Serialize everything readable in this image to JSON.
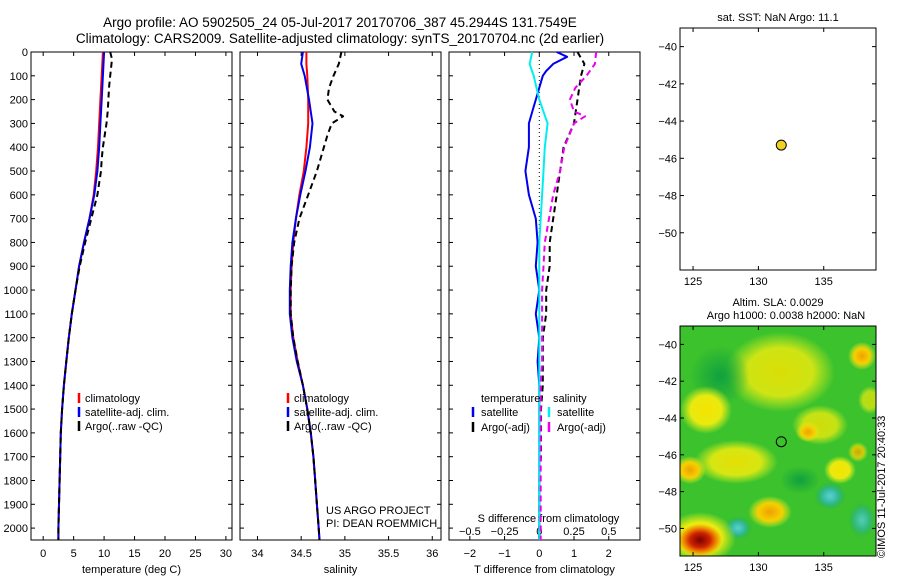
{
  "header": {
    "line1": "Argo profile: AO 5902505_24 05-Jul-2017 20170706_387 45.2944S 131.7549E",
    "line2": "Climatology: CARS2009. Satellite-adjusted climatology: synTS_20170704.nc (2d earlier)"
  },
  "colors": {
    "climatology": "#ff0000",
    "satellite": "#0000ee",
    "argo": "#000000",
    "sal_satellite": "#00eeee",
    "sal_argo": "#ee00ee",
    "marker": "#f0d020"
  },
  "chart_data": [
    {
      "type": "line",
      "xlabel": "temperature (deg C)",
      "ylabel": "",
      "xlim": [
        -2,
        31
      ],
      "ylim": [
        2050,
        0
      ],
      "xticks": [
        0,
        5,
        10,
        15,
        20,
        25,
        30
      ],
      "yticks": [
        0,
        100,
        200,
        300,
        400,
        500,
        600,
        700,
        800,
        900,
        1000,
        1100,
        1200,
        1300,
        1400,
        1500,
        1600,
        1700,
        1800,
        1900,
        2000
      ],
      "legend": {
        "position": "lower-center",
        "entries": [
          "climatology",
          "satellite-adj. clim.",
          "Argo(..raw -QC)"
        ]
      },
      "series": [
        {
          "name": "climatology",
          "color": "red",
          "style": "solid",
          "depth": [
            0,
            50,
            100,
            200,
            300,
            400,
            500,
            600,
            700,
            800,
            900,
            1000,
            1100,
            1200,
            1300,
            1400,
            1500,
            1600,
            1700,
            1800,
            1900,
            2000,
            2050
          ],
          "values": [
            9.8,
            9.7,
            9.6,
            9.4,
            9.2,
            9.0,
            8.7,
            8.3,
            7.6,
            6.7,
            5.9,
            5.3,
            4.7,
            4.2,
            3.8,
            3.4,
            3.1,
            2.9,
            2.8,
            2.7,
            2.6,
            2.5,
            2.5
          ]
        },
        {
          "name": "satellite-adj. clim.",
          "color": "blue",
          "style": "solid",
          "depth": [
            0,
            50,
            100,
            200,
            300,
            400,
            500,
            600,
            700,
            800,
            900,
            1000,
            1100,
            1200,
            1300,
            1400,
            1500,
            1600,
            1700,
            1800,
            1900,
            2000,
            2050
          ],
          "values": [
            10.0,
            9.9,
            9.8,
            9.6,
            9.4,
            9.2,
            8.9,
            8.4,
            7.6,
            6.7,
            5.9,
            5.3,
            4.7,
            4.2,
            3.8,
            3.4,
            3.1,
            2.9,
            2.8,
            2.7,
            2.6,
            2.5,
            2.5
          ]
        },
        {
          "name": "Argo(..raw -QC)",
          "color": "black",
          "style": "dashed",
          "depth": [
            0,
            30,
            100,
            150,
            200,
            250,
            300,
            350,
            400,
            450,
            500,
            550,
            600,
            700,
            800,
            900,
            1000,
            1100,
            1200,
            1300,
            1400,
            1500,
            1600,
            1700,
            1800,
            1900,
            2000,
            2050
          ],
          "values": [
            11.0,
            11.3,
            11.0,
            10.8,
            10.7,
            10.6,
            10.4,
            10.1,
            9.8,
            9.6,
            9.5,
            9.2,
            8.9,
            7.9,
            6.9,
            6.0,
            5.3,
            4.7,
            4.2,
            3.8,
            3.4,
            3.1,
            2.9,
            2.8,
            2.7,
            2.6,
            2.5,
            2.5
          ]
        }
      ]
    },
    {
      "type": "line",
      "xlabel": "salinity",
      "xlim": [
        33.8,
        36.1
      ],
      "ylim": [
        2050,
        0
      ],
      "xticks": [
        34,
        34.5,
        35,
        35.5,
        36
      ],
      "legend": {
        "position": "lower-center",
        "entries": [
          "climatology",
          "satellite-adj. clim.",
          "Argo(..raw -QC)"
        ]
      },
      "annotation": [
        "US ARGO PROJECT",
        "PI: DEAN ROEMMICH"
      ],
      "series": [
        {
          "name": "climatology",
          "color": "red",
          "style": "solid",
          "depth": [
            0,
            50,
            100,
            200,
            300,
            400,
            500,
            600,
            700,
            800,
            900,
            1000,
            1100,
            1200,
            1300,
            1400,
            1500,
            1600,
            1700,
            1800,
            1900,
            2000,
            2050
          ],
          "values": [
            34.56,
            34.56,
            34.57,
            34.58,
            34.58,
            34.56,
            34.53,
            34.48,
            34.44,
            34.41,
            34.39,
            34.38,
            34.38,
            34.41,
            34.46,
            34.52,
            34.57,
            34.61,
            34.64,
            34.66,
            34.68,
            34.7,
            34.71
          ]
        },
        {
          "name": "satellite-adj. clim.",
          "color": "blue",
          "style": "solid",
          "depth": [
            0,
            50,
            100,
            200,
            300,
            400,
            500,
            600,
            700,
            800,
            900,
            1000,
            1100,
            1200,
            1300,
            1400,
            1500,
            1600,
            1700,
            1800,
            1900,
            2000,
            2050
          ],
          "values": [
            34.52,
            34.5,
            34.54,
            34.59,
            34.63,
            34.6,
            34.55,
            34.49,
            34.44,
            34.4,
            34.38,
            34.37,
            34.37,
            34.4,
            34.45,
            34.52,
            34.57,
            34.61,
            34.64,
            34.66,
            34.68,
            34.7,
            34.71
          ]
        },
        {
          "name": "Argo(..raw -QC)",
          "color": "black",
          "style": "dashed",
          "depth": [
            0,
            50,
            100,
            150,
            200,
            250,
            270,
            300,
            350,
            400,
            450,
            500,
            600,
            700,
            800,
            900,
            1000,
            1100,
            1200,
            1300,
            1400,
            1500,
            1600,
            1700,
            1800,
            1900,
            2000,
            2050
          ],
          "values": [
            34.96,
            34.93,
            34.87,
            34.82,
            34.8,
            34.88,
            34.98,
            34.85,
            34.8,
            34.76,
            34.72,
            34.68,
            34.58,
            34.48,
            34.42,
            34.39,
            34.38,
            34.38,
            34.41,
            34.46,
            34.52,
            34.57,
            34.61,
            34.64,
            34.66,
            34.68,
            34.7,
            34.71
          ]
        }
      ]
    },
    {
      "type": "line",
      "xlabel": "T difference from climatology",
      "xlabel2": "S difference from climatology",
      "xlim": [
        -2.6,
        2.9
      ],
      "ylim": [
        2050,
        0
      ],
      "xticks": [
        -2,
        -1,
        0,
        1,
        2
      ],
      "xticks2": [
        {
          "value": -0.5,
          "label": "−0.5"
        },
        {
          "value": -0.25,
          "label": "−0.25"
        },
        {
          "value": 0,
          "label": "0"
        },
        {
          "value": 0.25,
          "label": "0.25"
        },
        {
          "value": 0.5,
          "label": "0.5"
        }
      ],
      "legend": {
        "position": "lower-center",
        "groups": [
          "temperature",
          "salinity"
        ],
        "entries": [
          "satellite",
          "Argo(-adj)",
          "satellite",
          "Argo(-adj)"
        ]
      },
      "series": [
        {
          "name": "satellite",
          "group": "temperature",
          "color": "blue",
          "style": "solid",
          "depth": [
            0,
            20,
            50,
            80,
            100,
            150,
            200,
            250,
            300,
            400,
            500,
            600,
            700,
            800,
            900,
            1000,
            1100,
            1200,
            1300,
            1400,
            1500,
            1600,
            1700,
            1800,
            1900,
            2000,
            2050
          ],
          "values": [
            0.5,
            0.8,
            0.4,
            0.2,
            0.1,
            0.0,
            -0.1,
            -0.2,
            -0.3,
            -0.3,
            -0.4,
            -0.3,
            -0.1,
            -0.05,
            -0.1,
            0.0,
            -0.1,
            0.0,
            -0.05,
            0.0,
            0.0,
            0.0,
            0.0,
            0.0,
            0.0,
            0.0,
            0.0
          ]
        },
        {
          "name": "Argo(-adj)",
          "group": "temperature",
          "color": "black",
          "style": "dashed",
          "depth": [
            0,
            50,
            100,
            200,
            300,
            400,
            500,
            600,
            700,
            800,
            900,
            1000,
            1100,
            1200,
            1300,
            1400,
            1500,
            1600,
            1700,
            1800,
            1900,
            2000,
            2050
          ],
          "values": [
            1.1,
            1.3,
            1.2,
            1.1,
            1.0,
            0.7,
            0.6,
            0.5,
            0.4,
            0.3,
            0.3,
            0.2,
            0.2,
            0.1,
            0.1,
            0.1,
            0.05,
            0.05,
            0.05,
            0.0,
            0.0,
            0.0,
            0.0
          ]
        },
        {
          "name": "satellite",
          "group": "salinity",
          "color": "cyan",
          "style": "solid",
          "depth": [
            0,
            50,
            100,
            200,
            300,
            400,
            500,
            600,
            700,
            800,
            900,
            1000,
            1100,
            1200,
            1300,
            1400,
            1500,
            1600,
            1700,
            1800,
            1900,
            2000,
            2050
          ],
          "values": [
            -0.05,
            -0.07,
            -0.04,
            0.0,
            0.06,
            0.04,
            0.03,
            0.02,
            0.01,
            0.0,
            0.0,
            0.0,
            0.0,
            0.0,
            0.0,
            0.0,
            0.0,
            0.0,
            0.0,
            0.0,
            0.0,
            0.0,
            0.0
          ]
        },
        {
          "name": "Argo(-adj)",
          "group": "salinity",
          "color": "magenta",
          "style": "dashed",
          "depth": [
            0,
            50,
            100,
            150,
            200,
            250,
            270,
            300,
            400,
            500,
            600,
            700,
            800,
            900,
            1000,
            1100,
            1200,
            1300,
            1400,
            1500,
            1600,
            1700,
            1800,
            1900,
            2000,
            2050
          ],
          "values": [
            0.41,
            0.4,
            0.34,
            0.26,
            0.22,
            0.25,
            0.33,
            0.25,
            0.18,
            0.15,
            0.1,
            0.07,
            0.04,
            0.03,
            0.02,
            0.02,
            0.02,
            0.02,
            0.01,
            0.01,
            0.01,
            0.01,
            0.01,
            0.01,
            0.01,
            0.01
          ]
        }
      ]
    },
    {
      "type": "scatter",
      "title": "sat. SST: NaN Argo: 11.1",
      "xlim": [
        124,
        139
      ],
      "ylim": [
        -52,
        -39
      ],
      "xticks": [
        125,
        130,
        135
      ],
      "yticks": [
        -40,
        -42,
        -44,
        -46,
        -48,
        -50
      ],
      "points": [
        {
          "x": 131.75,
          "y": -45.29
        }
      ]
    },
    {
      "type": "heatmap",
      "title": "Altim. SLA: 0.0029",
      "subtitle": "Argo h1000: 0.0038 h2000: NaN",
      "xlim": [
        124,
        139
      ],
      "ylim": [
        -51.5,
        -39
      ],
      "xticks": [
        125,
        130,
        135
      ],
      "yticks": [
        -40,
        -42,
        -44,
        -46,
        -48,
        -50
      ],
      "points": [
        {
          "x": 131.75,
          "y": -45.29
        }
      ]
    }
  ],
  "credit": "©IMOS 11-Jul-2017 20:40:33"
}
